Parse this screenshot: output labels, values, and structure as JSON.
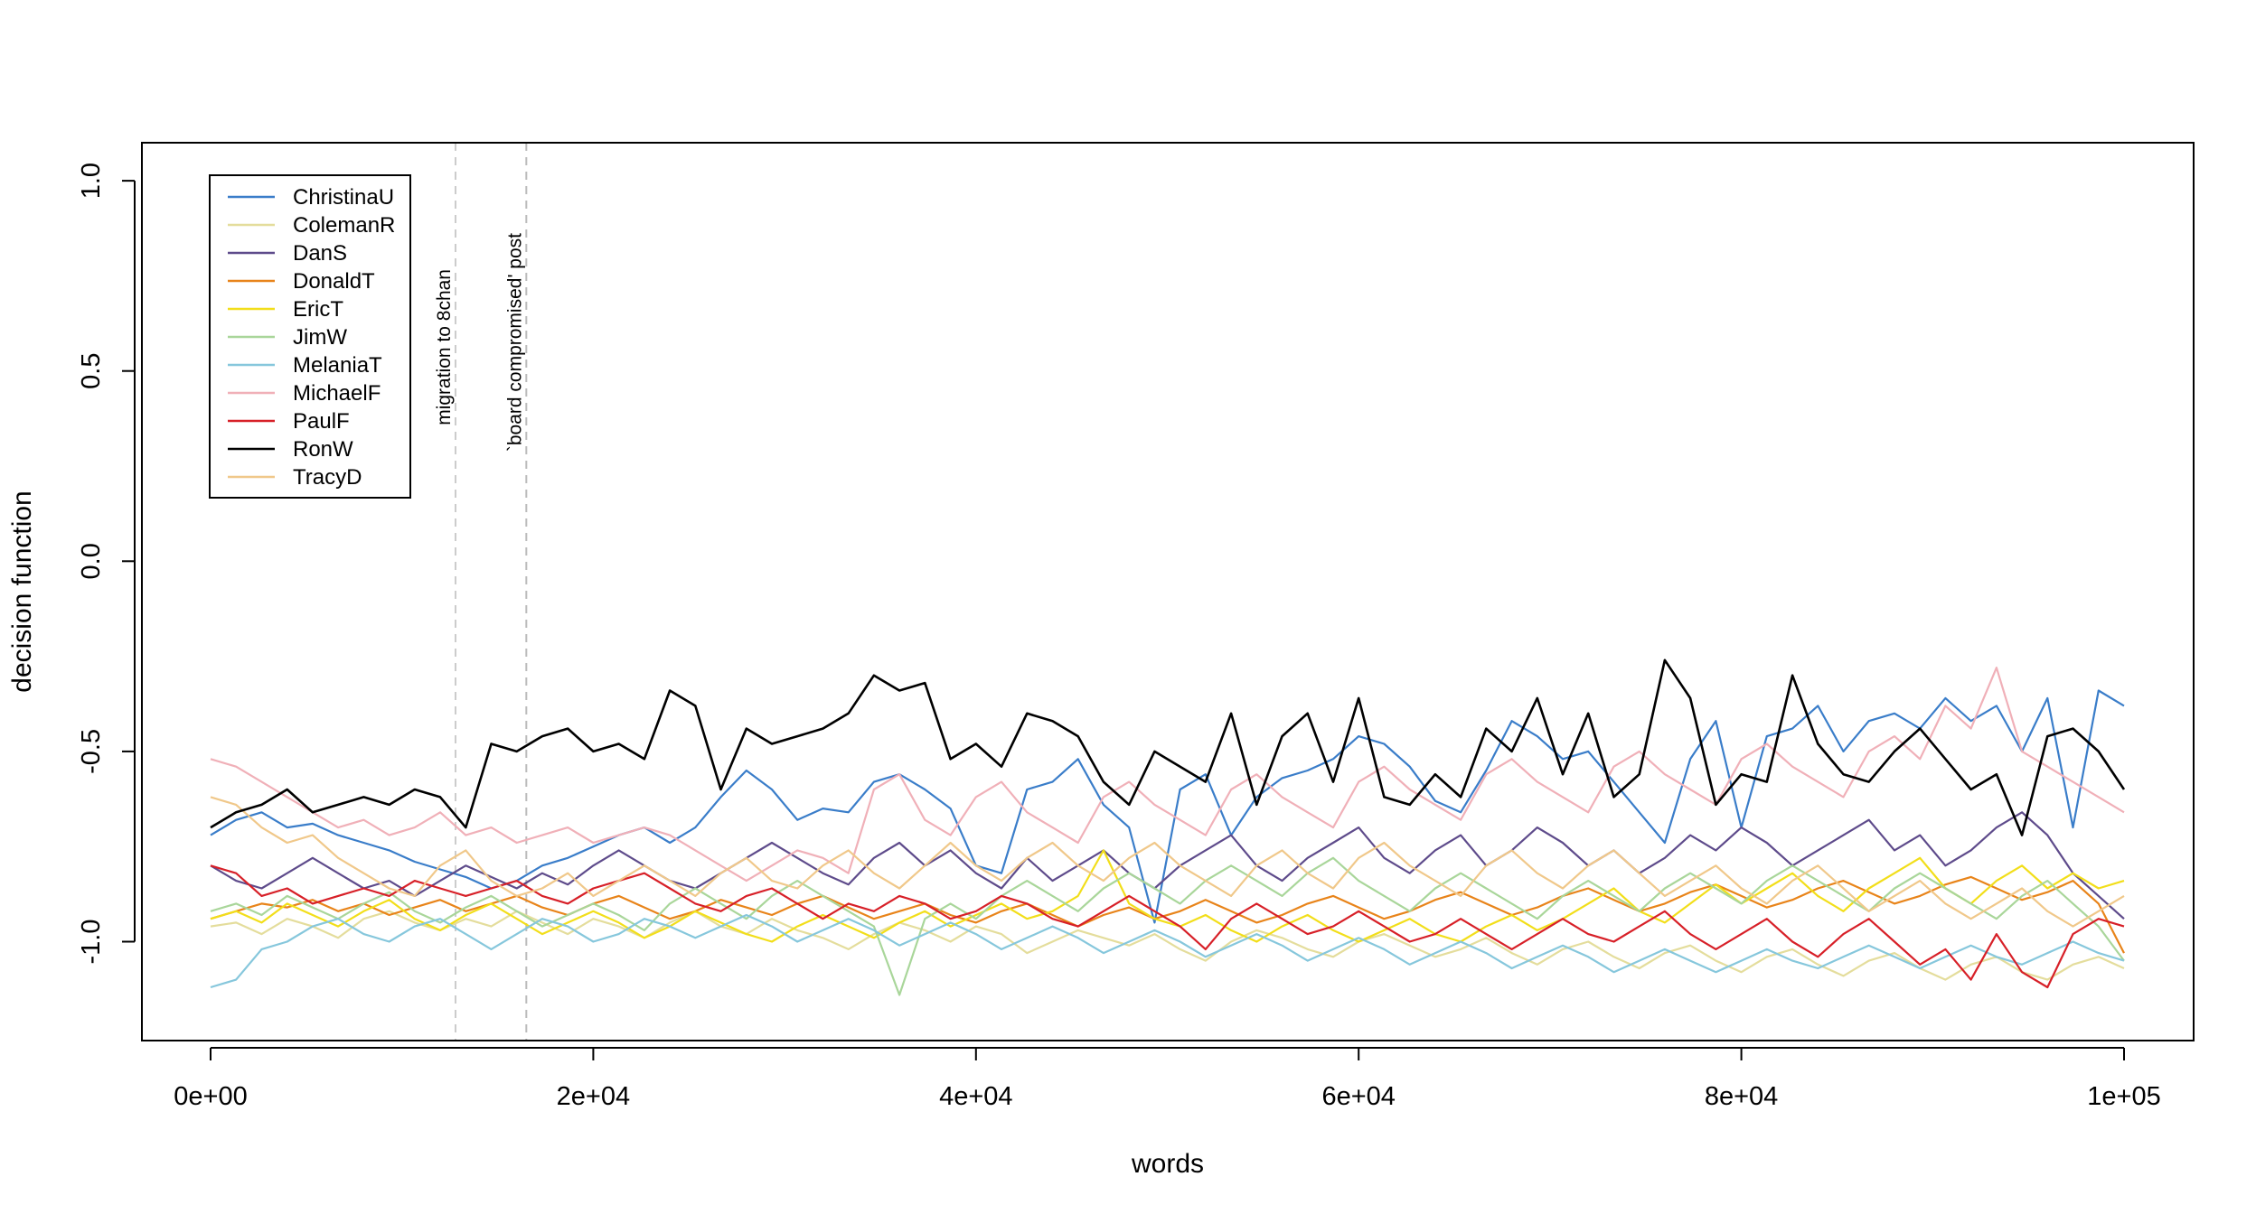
{
  "chart_data": {
    "type": "line",
    "xlabel": "words",
    "ylabel": "decision function",
    "xlim": [
      0,
      100000
    ],
    "ylim": [
      -1.26,
      1.1
    ],
    "x_ticks": [
      0,
      20000,
      40000,
      60000,
      80000,
      100000
    ],
    "x_tick_labels": [
      "0e+00",
      "2e+04",
      "4e+04",
      "6e+04",
      "8e+04",
      "1e+05"
    ],
    "y_ticks": [
      1.0,
      0.5,
      0.0,
      -0.5,
      -1.0
    ],
    "y_tick_labels": [
      "1.0",
      "0.5",
      "0.0",
      "-0.5",
      "-1.0"
    ],
    "grid": false,
    "legend_position": "top-left",
    "annotations": [
      {
        "x": 12800,
        "label": "migration to 8chan",
        "line_color": "#cccccc"
      },
      {
        "x": 16500,
        "label": "`board compromised' post",
        "line_color": "#bbbbbb"
      }
    ],
    "series": [
      {
        "name": "ChristinaU",
        "color": "#3a7dc9",
        "values": [
          -0.72,
          -0.68,
          -0.66,
          -0.7,
          -0.69,
          -0.72,
          -0.74,
          -0.76,
          -0.79,
          -0.81,
          -0.83,
          -0.86,
          -0.84,
          -0.8,
          -0.78,
          -0.75,
          -0.72,
          -0.7,
          -0.74,
          -0.7,
          -0.62,
          -0.55,
          -0.6,
          -0.68,
          -0.65,
          -0.66,
          -0.58,
          -0.56,
          -0.6,
          -0.65,
          -0.8,
          -0.82,
          -0.6,
          -0.58,
          -0.52,
          -0.64,
          -0.7,
          -0.95,
          -0.6,
          -0.56,
          -0.72,
          -0.62,
          -0.57,
          -0.55,
          -0.52,
          -0.46,
          -0.48,
          -0.54,
          -0.63,
          -0.66,
          -0.55,
          -0.42,
          -0.46,
          -0.52,
          -0.5,
          -0.58,
          -0.66,
          -0.74,
          -0.52,
          -0.42,
          -0.7,
          -0.46,
          -0.44,
          -0.38,
          -0.5,
          -0.42,
          -0.4,
          -0.44,
          -0.36,
          -0.42,
          -0.38,
          -0.5,
          -0.36,
          -0.7,
          -0.34,
          -0.38
        ]
      },
      {
        "name": "ColemanR",
        "color": "#e4dd9c",
        "values": [
          -0.96,
          -0.95,
          -0.98,
          -0.94,
          -0.96,
          -0.99,
          -0.94,
          -0.92,
          -0.95,
          -0.97,
          -0.94,
          -0.96,
          -0.92,
          -0.95,
          -0.98,
          -0.94,
          -0.96,
          -0.99,
          -0.95,
          -0.92,
          -0.96,
          -0.98,
          -0.94,
          -0.97,
          -0.99,
          -1.02,
          -0.98,
          -0.95,
          -0.97,
          -1.0,
          -0.96,
          -0.98,
          -1.03,
          -1.0,
          -0.97,
          -0.99,
          -1.01,
          -0.98,
          -1.02,
          -1.05,
          -1.0,
          -0.97,
          -0.99,
          -1.02,
          -1.04,
          -1.0,
          -0.98,
          -1.01,
          -1.04,
          -1.02,
          -0.99,
          -1.03,
          -1.06,
          -1.02,
          -1.0,
          -1.04,
          -1.07,
          -1.03,
          -1.01,
          -1.05,
          -1.08,
          -1.04,
          -1.02,
          -1.06,
          -1.09,
          -1.05,
          -1.03,
          -1.07,
          -1.1,
          -1.06,
          -1.04,
          -1.08,
          -1.1,
          -1.06,
          -1.04,
          -1.07
        ]
      },
      {
        "name": "DanS",
        "color": "#5e4b8b",
        "values": [
          -0.8,
          -0.84,
          -0.86,
          -0.82,
          -0.78,
          -0.82,
          -0.86,
          -0.84,
          -0.88,
          -0.84,
          -0.8,
          -0.83,
          -0.86,
          -0.82,
          -0.85,
          -0.8,
          -0.76,
          -0.8,
          -0.84,
          -0.86,
          -0.82,
          -0.78,
          -0.74,
          -0.78,
          -0.82,
          -0.85,
          -0.78,
          -0.74,
          -0.8,
          -0.76,
          -0.82,
          -0.86,
          -0.78,
          -0.84,
          -0.8,
          -0.76,
          -0.82,
          -0.86,
          -0.8,
          -0.76,
          -0.72,
          -0.8,
          -0.84,
          -0.78,
          -0.74,
          -0.7,
          -0.78,
          -0.82,
          -0.76,
          -0.72,
          -0.8,
          -0.76,
          -0.7,
          -0.74,
          -0.8,
          -0.76,
          -0.82,
          -0.78,
          -0.72,
          -0.76,
          -0.7,
          -0.74,
          -0.8,
          -0.76,
          -0.72,
          -0.68,
          -0.76,
          -0.72,
          -0.8,
          -0.76,
          -0.7,
          -0.66,
          -0.72,
          -0.82,
          -0.88,
          -0.94
        ]
      },
      {
        "name": "DonaldT",
        "color": "#e8841a",
        "values": [
          -0.94,
          -0.92,
          -0.9,
          -0.91,
          -0.89,
          -0.92,
          -0.9,
          -0.93,
          -0.91,
          -0.89,
          -0.92,
          -0.9,
          -0.88,
          -0.91,
          -0.93,
          -0.9,
          -0.88,
          -0.91,
          -0.94,
          -0.92,
          -0.89,
          -0.91,
          -0.93,
          -0.9,
          -0.88,
          -0.91,
          -0.94,
          -0.92,
          -0.9,
          -0.93,
          -0.95,
          -0.92,
          -0.9,
          -0.93,
          -0.96,
          -0.93,
          -0.91,
          -0.94,
          -0.92,
          -0.89,
          -0.92,
          -0.95,
          -0.93,
          -0.9,
          -0.88,
          -0.91,
          -0.94,
          -0.92,
          -0.89,
          -0.87,
          -0.9,
          -0.93,
          -0.91,
          -0.88,
          -0.86,
          -0.89,
          -0.92,
          -0.9,
          -0.87,
          -0.85,
          -0.88,
          -0.91,
          -0.89,
          -0.86,
          -0.84,
          -0.87,
          -0.9,
          -0.88,
          -0.85,
          -0.83,
          -0.86,
          -0.89,
          -0.87,
          -0.84,
          -0.9,
          -1.03
        ]
      },
      {
        "name": "EricT",
        "color": "#f2de1a",
        "values": [
          -0.94,
          -0.92,
          -0.95,
          -0.9,
          -0.93,
          -0.96,
          -0.92,
          -0.89,
          -0.94,
          -0.97,
          -0.93,
          -0.9,
          -0.94,
          -0.98,
          -0.95,
          -0.92,
          -0.95,
          -0.99,
          -0.96,
          -0.92,
          -0.95,
          -0.98,
          -1.0,
          -0.96,
          -0.93,
          -0.96,
          -0.99,
          -0.95,
          -0.92,
          -0.96,
          -0.93,
          -0.9,
          -0.94,
          -0.92,
          -0.88,
          -0.76,
          -0.9,
          -0.94,
          -0.96,
          -0.93,
          -0.97,
          -1.0,
          -0.96,
          -0.93,
          -0.97,
          -1.0,
          -0.97,
          -0.94,
          -0.98,
          -1.0,
          -0.96,
          -0.93,
          -0.97,
          -0.94,
          -0.9,
          -0.86,
          -0.92,
          -0.95,
          -0.9,
          -0.85,
          -0.9,
          -0.86,
          -0.82,
          -0.88,
          -0.92,
          -0.86,
          -0.82,
          -0.78,
          -0.86,
          -0.9,
          -0.84,
          -0.8,
          -0.86,
          -0.82,
          -0.86,
          -0.84
        ]
      },
      {
        "name": "JimW",
        "color": "#a9d69a",
        "values": [
          -0.92,
          -0.9,
          -0.93,
          -0.88,
          -0.91,
          -0.94,
          -0.9,
          -0.87,
          -0.92,
          -0.95,
          -0.91,
          -0.88,
          -0.92,
          -0.96,
          -0.93,
          -0.9,
          -0.93,
          -0.97,
          -0.9,
          -0.86,
          -0.9,
          -0.94,
          -0.88,
          -0.84,
          -0.88,
          -0.92,
          -0.96,
          -1.14,
          -0.94,
          -0.9,
          -0.94,
          -0.88,
          -0.84,
          -0.88,
          -0.92,
          -0.86,
          -0.82,
          -0.86,
          -0.9,
          -0.84,
          -0.8,
          -0.84,
          -0.88,
          -0.82,
          -0.78,
          -0.84,
          -0.88,
          -0.92,
          -0.86,
          -0.82,
          -0.86,
          -0.9,
          -0.94,
          -0.88,
          -0.84,
          -0.88,
          -0.92,
          -0.86,
          -0.82,
          -0.86,
          -0.9,
          -0.84,
          -0.8,
          -0.84,
          -0.88,
          -0.92,
          -0.86,
          -0.82,
          -0.86,
          -0.9,
          -0.94,
          -0.88,
          -0.84,
          -0.9,
          -0.96,
          -1.05
        ]
      },
      {
        "name": "MelaniaT",
        "color": "#86c7dc",
        "values": [
          -1.12,
          -1.1,
          -1.02,
          -1.0,
          -0.96,
          -0.94,
          -0.98,
          -1.0,
          -0.96,
          -0.94,
          -0.98,
          -1.02,
          -0.98,
          -0.94,
          -0.96,
          -1.0,
          -0.98,
          -0.94,
          -0.96,
          -0.99,
          -0.96,
          -0.93,
          -0.96,
          -1.0,
          -0.97,
          -0.94,
          -0.97,
          -1.01,
          -0.98,
          -0.95,
          -0.98,
          -1.02,
          -0.99,
          -0.96,
          -0.99,
          -1.03,
          -1.0,
          -0.97,
          -1.0,
          -1.04,
          -1.01,
          -0.98,
          -1.01,
          -1.05,
          -1.02,
          -0.99,
          -1.02,
          -1.06,
          -1.03,
          -1.0,
          -1.03,
          -1.07,
          -1.04,
          -1.01,
          -1.04,
          -1.08,
          -1.05,
          -1.02,
          -1.05,
          -1.08,
          -1.05,
          -1.02,
          -1.05,
          -1.07,
          -1.04,
          -1.01,
          -1.04,
          -1.07,
          -1.04,
          -1.01,
          -1.04,
          -1.06,
          -1.03,
          -1.0,
          -1.03,
          -1.05
        ]
      },
      {
        "name": "MichaelF",
        "color": "#f0b0b8",
        "values": [
          -0.52,
          -0.54,
          -0.58,
          -0.62,
          -0.66,
          -0.7,
          -0.68,
          -0.72,
          -0.7,
          -0.66,
          -0.72,
          -0.7,
          -0.74,
          -0.72,
          -0.7,
          -0.74,
          -0.72,
          -0.7,
          -0.72,
          -0.76,
          -0.8,
          -0.84,
          -0.8,
          -0.76,
          -0.78,
          -0.82,
          -0.6,
          -0.56,
          -0.68,
          -0.72,
          -0.62,
          -0.58,
          -0.66,
          -0.7,
          -0.74,
          -0.62,
          -0.58,
          -0.64,
          -0.68,
          -0.72,
          -0.6,
          -0.56,
          -0.62,
          -0.66,
          -0.7,
          -0.58,
          -0.54,
          -0.6,
          -0.64,
          -0.68,
          -0.56,
          -0.52,
          -0.58,
          -0.62,
          -0.66,
          -0.54,
          -0.5,
          -0.56,
          -0.6,
          -0.64,
          -0.52,
          -0.48,
          -0.54,
          -0.58,
          -0.62,
          -0.5,
          -0.46,
          -0.52,
          -0.38,
          -0.44,
          -0.28,
          -0.5,
          -0.54,
          -0.58,
          -0.62,
          -0.66
        ]
      },
      {
        "name": "PaulF",
        "color": "#d72028",
        "values": [
          -0.8,
          -0.82,
          -0.88,
          -0.86,
          -0.9,
          -0.88,
          -0.86,
          -0.88,
          -0.84,
          -0.86,
          -0.88,
          -0.86,
          -0.84,
          -0.88,
          -0.9,
          -0.86,
          -0.84,
          -0.82,
          -0.86,
          -0.9,
          -0.92,
          -0.88,
          -0.86,
          -0.9,
          -0.94,
          -0.9,
          -0.92,
          -0.88,
          -0.9,
          -0.94,
          -0.92,
          -0.88,
          -0.9,
          -0.94,
          -0.96,
          -0.92,
          -0.88,
          -0.92,
          -0.96,
          -1.02,
          -0.94,
          -0.9,
          -0.94,
          -0.98,
          -0.96,
          -0.92,
          -0.96,
          -1.0,
          -0.98,
          -0.94,
          -0.98,
          -1.02,
          -0.98,
          -0.94,
          -0.98,
          -1.0,
          -0.96,
          -0.92,
          -0.98,
          -1.02,
          -0.98,
          -0.94,
          -1.0,
          -1.04,
          -0.98,
          -0.94,
          -1.0,
          -1.06,
          -1.02,
          -1.1,
          -0.98,
          -1.08,
          -1.12,
          -0.98,
          -0.94,
          -0.96
        ]
      },
      {
        "name": "RonW",
        "color": "#000000",
        "values": [
          -0.7,
          -0.66,
          -0.64,
          -0.6,
          -0.66,
          -0.64,
          -0.62,
          -0.64,
          -0.6,
          -0.62,
          -0.7,
          -0.48,
          -0.5,
          -0.46,
          -0.44,
          -0.5,
          -0.48,
          -0.52,
          -0.34,
          -0.38,
          -0.6,
          -0.44,
          -0.48,
          -0.46,
          -0.44,
          -0.4,
          -0.3,
          -0.34,
          -0.32,
          -0.52,
          -0.48,
          -0.54,
          -0.4,
          -0.42,
          -0.46,
          -0.58,
          -0.64,
          -0.5,
          -0.54,
          -0.58,
          -0.4,
          -0.64,
          -0.46,
          -0.4,
          -0.58,
          -0.36,
          -0.62,
          -0.64,
          -0.56,
          -0.62,
          -0.44,
          -0.5,
          -0.36,
          -0.56,
          -0.4,
          -0.62,
          -0.56,
          -0.26,
          -0.36,
          -0.64,
          -0.56,
          -0.58,
          -0.3,
          -0.48,
          -0.56,
          -0.58,
          -0.5,
          -0.44,
          -0.52,
          -0.6,
          -0.56,
          -0.72,
          -0.46,
          -0.44,
          -0.5,
          -0.6
        ]
      },
      {
        "name": "TracyD",
        "color": "#f0c88a",
        "values": [
          -0.62,
          -0.64,
          -0.7,
          -0.74,
          -0.72,
          -0.78,
          -0.82,
          -0.86,
          -0.88,
          -0.8,
          -0.76,
          -0.84,
          -0.88,
          -0.86,
          -0.82,
          -0.88,
          -0.84,
          -0.8,
          -0.84,
          -0.88,
          -0.82,
          -0.78,
          -0.84,
          -0.86,
          -0.8,
          -0.76,
          -0.82,
          -0.86,
          -0.8,
          -0.74,
          -0.8,
          -0.84,
          -0.78,
          -0.74,
          -0.8,
          -0.84,
          -0.78,
          -0.74,
          -0.8,
          -0.84,
          -0.88,
          -0.8,
          -0.76,
          -0.82,
          -0.86,
          -0.78,
          -0.74,
          -0.8,
          -0.84,
          -0.88,
          -0.8,
          -0.76,
          -0.82,
          -0.86,
          -0.8,
          -0.76,
          -0.82,
          -0.88,
          -0.84,
          -0.8,
          -0.86,
          -0.9,
          -0.84,
          -0.8,
          -0.86,
          -0.92,
          -0.88,
          -0.84,
          -0.9,
          -0.94,
          -0.9,
          -0.86,
          -0.92,
          -0.96,
          -0.92,
          -0.88
        ]
      }
    ]
  }
}
